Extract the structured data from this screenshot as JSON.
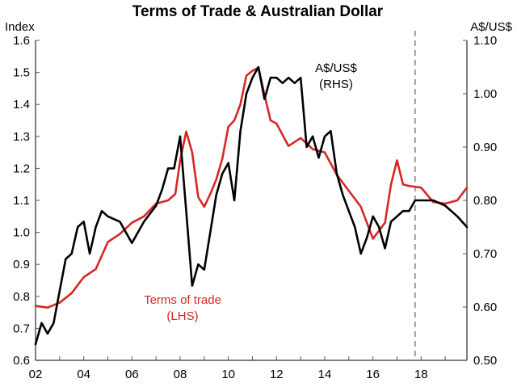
{
  "chart_data": {
    "type": "line",
    "title": "Terms of Trade & Australian Dollar",
    "ylabel_left": "Index",
    "ylabel_right": "A$/US$",
    "x_range": [
      2002,
      2019.9
    ],
    "xticks": [
      "02",
      "04",
      "06",
      "08",
      "10",
      "12",
      "14",
      "16",
      "18"
    ],
    "ylim_left": [
      0.6,
      1.6
    ],
    "yticks_left": [
      "0.6",
      "0.7",
      "0.8",
      "0.9",
      "1.0",
      "1.1",
      "1.2",
      "1.3",
      "1.4",
      "1.5",
      "1.6"
    ],
    "ylim_right": [
      0.5,
      1.1
    ],
    "yticks_right": [
      "0.50",
      "0.60",
      "0.70",
      "0.80",
      "0.90",
      "1.00",
      "1.10"
    ],
    "grid": false,
    "vline_x": 2017.75,
    "annotations": [
      {
        "id": "tot",
        "lines": [
          "Terms of trade",
          "(LHS)"
        ],
        "color": "#d62728"
      },
      {
        "id": "aud",
        "lines": [
          "A$/US$",
          "(RHS)"
        ],
        "color": "#000000"
      }
    ],
    "series": [
      {
        "name": "Terms of trade",
        "axis": "left",
        "color": "#d62728",
        "x": [
          2002.0,
          2002.5,
          2003.0,
          2003.5,
          2004.0,
          2004.5,
          2005.0,
          2005.5,
          2006.0,
          2006.5,
          2007.0,
          2007.5,
          2007.8,
          2008.0,
          2008.25,
          2008.5,
          2008.75,
          2009.0,
          2009.25,
          2009.5,
          2009.75,
          2010.0,
          2010.25,
          2010.5,
          2010.75,
          2011.0,
          2011.25,
          2011.5,
          2011.75,
          2012.0,
          2012.5,
          2013.0,
          2013.5,
          2014.0,
          2014.5,
          2015.0,
          2015.5,
          2016.0,
          2016.5,
          2016.75,
          2017.0,
          2017.25,
          2017.5,
          2018.0,
          2018.5,
          2019.0,
          2019.5,
          2019.9
        ],
        "y": [
          0.77,
          0.765,
          0.78,
          0.81,
          0.86,
          0.885,
          0.97,
          0.995,
          1.03,
          1.05,
          1.09,
          1.1,
          1.12,
          1.225,
          1.315,
          1.25,
          1.11,
          1.08,
          1.12,
          1.165,
          1.23,
          1.33,
          1.35,
          1.4,
          1.49,
          1.505,
          1.515,
          1.43,
          1.35,
          1.34,
          1.27,
          1.295,
          1.26,
          1.25,
          1.18,
          1.13,
          1.08,
          0.98,
          1.03,
          1.15,
          1.225,
          1.15,
          1.145,
          1.14,
          1.095,
          1.09,
          1.1,
          1.14
        ]
      },
      {
        "name": "A$/US$",
        "axis": "right",
        "color": "#000000",
        "x": [
          2002.0,
          2002.25,
          2002.5,
          2002.75,
          2003.0,
          2003.25,
          2003.5,
          2003.75,
          2004.0,
          2004.25,
          2004.5,
          2004.75,
          2005.0,
          2005.5,
          2006.0,
          2006.5,
          2007.0,
          2007.25,
          2007.5,
          2007.75,
          2008.0,
          2008.25,
          2008.5,
          2008.75,
          2009.0,
          2009.25,
          2009.5,
          2009.75,
          2010.0,
          2010.25,
          2010.5,
          2010.75,
          2011.0,
          2011.25,
          2011.5,
          2011.75,
          2012.0,
          2012.25,
          2012.5,
          2012.75,
          2013.0,
          2013.25,
          2013.5,
          2013.75,
          2014.0,
          2014.25,
          2014.5,
          2014.75,
          2015.0,
          2015.25,
          2015.5,
          2015.75,
          2016.0,
          2016.25,
          2016.5,
          2016.75,
          2017.0,
          2017.25,
          2017.5,
          2017.75,
          2018.0,
          2018.5,
          2019.0,
          2019.5,
          2019.9
        ],
        "y": [
          0.53,
          0.57,
          0.55,
          0.57,
          0.63,
          0.69,
          0.7,
          0.75,
          0.76,
          0.7,
          0.75,
          0.78,
          0.77,
          0.76,
          0.72,
          0.76,
          0.79,
          0.82,
          0.86,
          0.86,
          0.92,
          0.78,
          0.64,
          0.68,
          0.67,
          0.74,
          0.81,
          0.85,
          0.87,
          0.8,
          0.93,
          1.0,
          1.03,
          1.05,
          0.99,
          1.03,
          1.03,
          1.02,
          1.03,
          1.02,
          1.03,
          0.9,
          0.92,
          0.88,
          0.92,
          0.93,
          0.85,
          0.81,
          0.78,
          0.75,
          0.7,
          0.73,
          0.77,
          0.75,
          0.71,
          0.76,
          0.77,
          0.78,
          0.78,
          0.8,
          0.8,
          0.8,
          0.79,
          0.77,
          0.75
        ]
      }
    ]
  }
}
